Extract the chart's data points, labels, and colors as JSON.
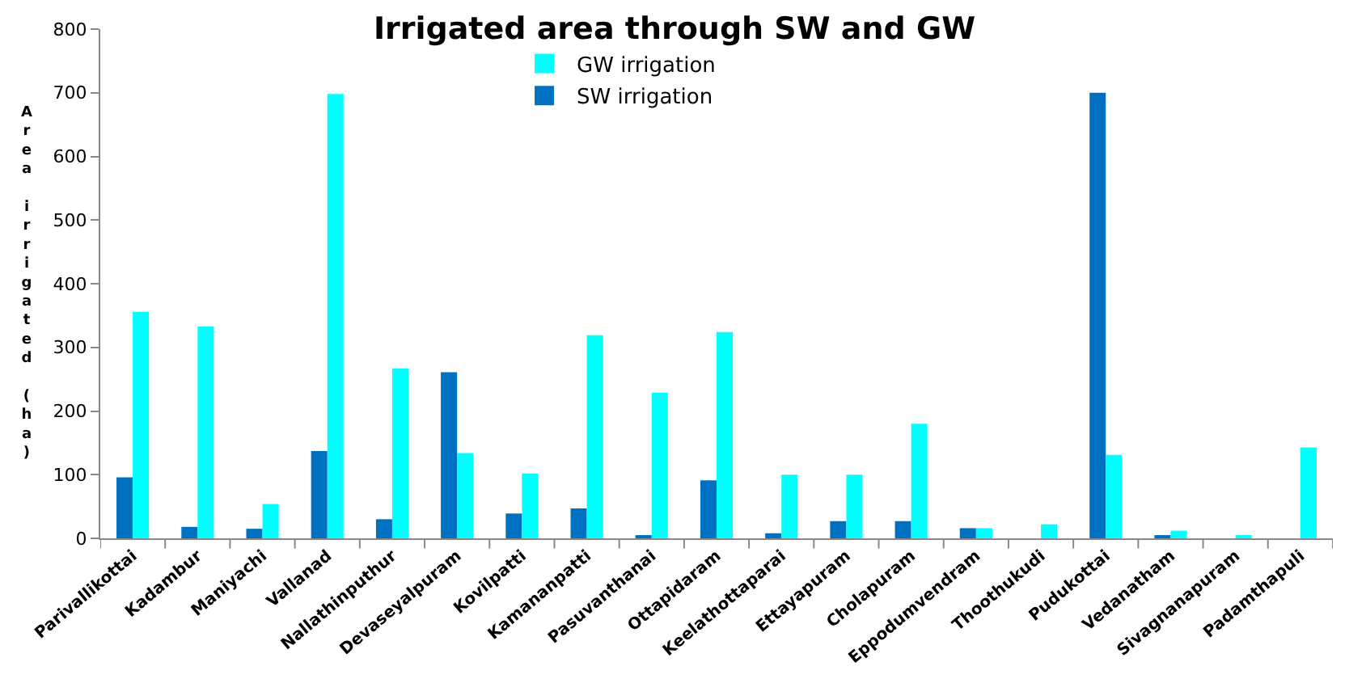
{
  "chart_data": {
    "type": "bar",
    "title": "Irrigated area through SW and GW",
    "ylabel": "Area irrigated (ha)",
    "categories": [
      "Parivallikottai",
      "Kadambur",
      "Maniyachi",
      "Vallanad",
      "Nallathinputhur",
      "Devaseyalpuram",
      "Kovilpatti",
      "Kamananpatti",
      "Pasuvanthanai",
      "Ottapidaram",
      "Keelathottaparai",
      "Ettayapuram",
      "Cholapuram",
      "Eppodumvendram",
      "Thoothukudi",
      "Pudukottai",
      "Vedanatham",
      "Sivagnanapuram",
      "Padamthapuli"
    ],
    "series": [
      {
        "name": "SW irrigation",
        "color": "#0070c0",
        "values": [
          96,
          18,
          15,
          137,
          30,
          261,
          39,
          47,
          4,
          91,
          8,
          27,
          27,
          16,
          0,
          700,
          4,
          0,
          0
        ]
      },
      {
        "name": "GW irrigation",
        "color": "#00ffff",
        "values": [
          356,
          333,
          54,
          698,
          267,
          134,
          102,
          319,
          229,
          324,
          100,
          100,
          180,
          16,
          22,
          131,
          12,
          4,
          143
        ]
      }
    ],
    "ylim": [
      0,
      800
    ],
    "yticks": [
      0,
      100,
      200,
      300,
      400,
      500,
      600,
      700,
      800
    ],
    "legend": "top"
  }
}
